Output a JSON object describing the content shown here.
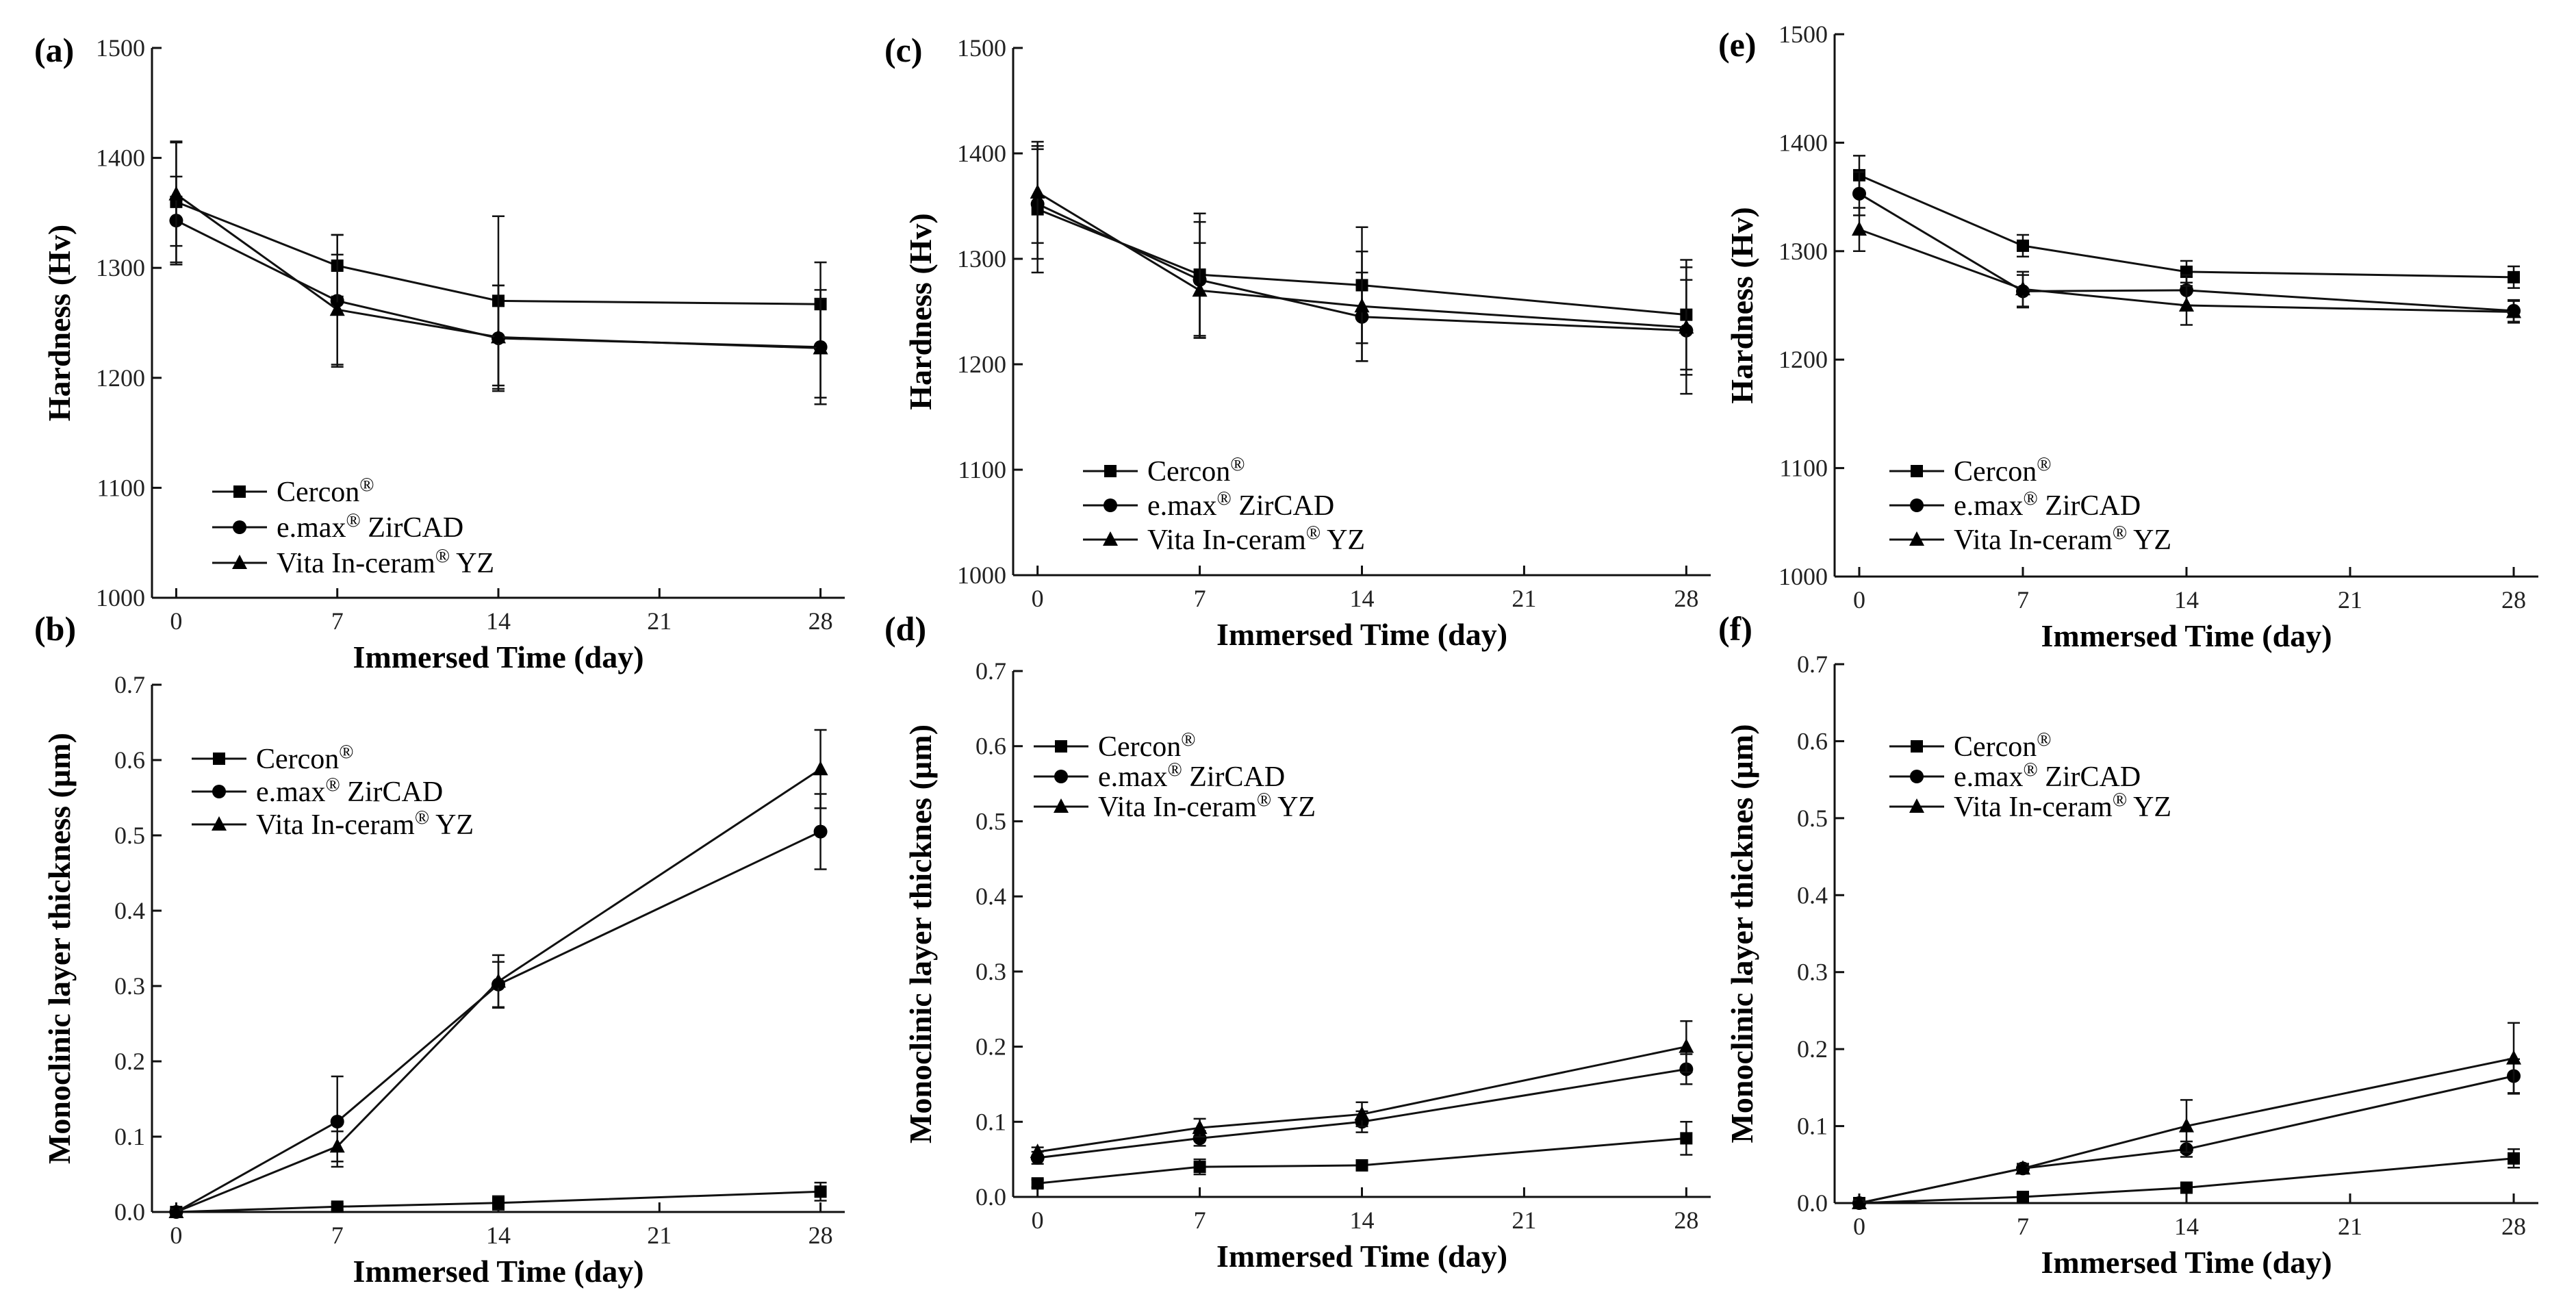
{
  "chart_data": [
    {
      "panel_label": "(a)",
      "type": "line",
      "xlabel": "Immersed Time (day)",
      "ylabel": "Hardness (Hv)",
      "xlim": [
        0,
        28
      ],
      "xticks": [
        0,
        7,
        14,
        21,
        28
      ],
      "ylim": [
        1000,
        1500
      ],
      "yticks": [
        1000,
        1100,
        1200,
        1300,
        1400,
        1500
      ],
      "ytick_labels": [
        "1000",
        "1100",
        "1200",
        "1300",
        "1400",
        "1500"
      ],
      "legend_position": "bottom-left",
      "x": [
        0,
        7,
        14,
        28
      ],
      "series": [
        {
          "name": "Cercon®",
          "name_base": "Cercon",
          "name_suffix": "",
          "marker": "square",
          "values": [
            1360,
            1302,
            1270,
            1267
          ],
          "errors": [
            55,
            28,
            77,
            38
          ]
        },
        {
          "name": "e.max® ZirCAD",
          "name_base": "e.max",
          "name_suffix": " ZirCAD",
          "marker": "circle",
          "values": [
            1343,
            1270,
            1236,
            1228
          ],
          "errors": [
            40,
            60,
            48,
            52
          ]
        },
        {
          "name": "Vita In-ceram® YZ",
          "name_base": "Vita In-ceram",
          "name_suffix": " YZ",
          "marker": "triangle",
          "values": [
            1367,
            1262,
            1237,
            1227
          ],
          "errors": [
            47,
            50,
            47,
            45
          ]
        }
      ]
    },
    {
      "panel_label": "(b)",
      "type": "line",
      "xlabel": "Immersed Time (day)",
      "ylabel": "Monoclinic layer thickness (µm)",
      "xlim": [
        0,
        28
      ],
      "xticks": [
        0,
        7,
        14,
        21,
        28
      ],
      "ylim": [
        0,
        0.7
      ],
      "yticks": [
        0,
        0.1,
        0.2,
        0.3,
        0.4,
        0.5,
        0.6,
        0.7
      ],
      "ytick_labels": [
        "0.0",
        "0.1",
        "0.2",
        "0.3",
        "0.4",
        "0.5",
        "0.6",
        "0.7"
      ],
      "legend_position": "top-left",
      "x": [
        0,
        7,
        14,
        28
      ],
      "series": [
        {
          "name": "Cercon®",
          "name_base": "Cercon",
          "name_suffix": "",
          "marker": "square",
          "values": [
            0.0,
            0.007,
            0.012,
            0.027
          ],
          "errors": [
            0.005,
            0.004,
            0.009,
            0.012
          ]
        },
        {
          "name": "e.max® ZirCAD",
          "name_base": "e.max",
          "name_suffix": " ZirCAD",
          "marker": "circle",
          "values": [
            0.0,
            0.12,
            0.302,
            0.505
          ],
          "errors": [
            0.004,
            0.06,
            0.03,
            0.05
          ]
        },
        {
          "name": "Vita In-ceram® YZ",
          "name_base": "Vita In-ceram",
          "name_suffix": " YZ",
          "marker": "triangle",
          "values": [
            0.0,
            0.087,
            0.306,
            0.588
          ],
          "errors": [
            0.004,
            0.02,
            0.035,
            0.052
          ]
        }
      ]
    },
    {
      "panel_label": "(c)",
      "type": "line",
      "xlabel": "Immersed Time (day)",
      "ylabel": "Hardness (Hv)",
      "xlim": [
        0,
        28
      ],
      "xticks": [
        0,
        7,
        14,
        21,
        28
      ],
      "ylim": [
        1000,
        1500
      ],
      "yticks": [
        1000,
        1100,
        1200,
        1300,
        1400,
        1500
      ],
      "ytick_labels": [
        "1000",
        "1100",
        "1200",
        "1300",
        "1400",
        "1500"
      ],
      "legend_position": "bottom-left",
      "x": [
        0,
        7,
        14,
        28
      ],
      "series": [
        {
          "name": "Cercon®",
          "name_base": "Cercon",
          "name_suffix": "",
          "marker": "square",
          "values": [
            1347,
            1285,
            1275,
            1247
          ],
          "errors": [
            60,
            58,
            55,
            52
          ]
        },
        {
          "name": "e.max® ZirCAD",
          "name_base": "e.max",
          "name_suffix": " ZirCAD",
          "marker": "circle",
          "values": [
            1352,
            1280,
            1245,
            1232
          ],
          "errors": [
            52,
            55,
            42,
            60
          ]
        },
        {
          "name": "Vita In-ceram® YZ",
          "name_base": "Vita In-ceram",
          "name_suffix": " YZ",
          "marker": "triangle",
          "values": [
            1363,
            1270,
            1255,
            1235
          ],
          "errors": [
            48,
            45,
            52,
            45
          ]
        }
      ]
    },
    {
      "panel_label": "(d)",
      "type": "line",
      "xlabel": "Immersed Time (day)",
      "ylabel": "Monoclinic layer thicknes (µm)",
      "xlim": [
        0,
        28
      ],
      "xticks": [
        0,
        7,
        14,
        21,
        28
      ],
      "ylim": [
        0,
        0.7
      ],
      "yticks": [
        0,
        0.1,
        0.2,
        0.3,
        0.4,
        0.5,
        0.6,
        0.7
      ],
      "ytick_labels": [
        "0.0",
        "0.1",
        "0.2",
        "0.3",
        "0.4",
        "0.5",
        "0.6",
        "0.7"
      ],
      "legend_position": "top-left",
      "x": [
        0,
        7,
        14,
        28
      ],
      "series": [
        {
          "name": "Cercon®",
          "name_base": "Cercon",
          "name_suffix": "",
          "marker": "square",
          "values": [
            0.018,
            0.04,
            0.042,
            0.078
          ],
          "errors": [
            0.005,
            0.01,
            0.006,
            0.022
          ]
        },
        {
          "name": "e.max® ZirCAD",
          "name_base": "e.max",
          "name_suffix": " ZirCAD",
          "marker": "circle",
          "values": [
            0.052,
            0.078,
            0.1,
            0.17
          ],
          "errors": [
            0.008,
            0.01,
            0.014,
            0.02
          ]
        },
        {
          "name": "Vita In-ceram® YZ",
          "name_base": "Vita In-ceram",
          "name_suffix": " YZ",
          "marker": "triangle",
          "values": [
            0.06,
            0.092,
            0.11,
            0.2
          ],
          "errors": [
            0.006,
            0.012,
            0.016,
            0.034
          ]
        }
      ]
    },
    {
      "panel_label": "(e)",
      "type": "line",
      "xlabel": "Immersed Time (day)",
      "ylabel": "Hardness (Hv)",
      "xlim": [
        0,
        28
      ],
      "xticks": [
        0,
        7,
        14,
        21,
        28
      ],
      "ylim": [
        1000,
        1500
      ],
      "yticks": [
        1000,
        1100,
        1200,
        1300,
        1400,
        1500
      ],
      "ytick_labels": [
        "1000",
        "1100",
        "1200",
        "1300",
        "1400",
        "1500"
      ],
      "legend_position": "bottom-left",
      "x": [
        0,
        7,
        14,
        28
      ],
      "series": [
        {
          "name": "Cercon®",
          "name_base": "Cercon",
          "name_suffix": "",
          "marker": "square",
          "values": [
            1370,
            1305,
            1281,
            1276
          ],
          "errors": [
            18,
            10,
            10,
            10
          ]
        },
        {
          "name": "e.max® ZirCAD",
          "name_base": "e.max",
          "name_suffix": " ZirCAD",
          "marker": "circle",
          "values": [
            1353,
            1263,
            1264,
            1245
          ],
          "errors": [
            20,
            15,
            14,
            10
          ]
        },
        {
          "name": "Vita In-ceram® YZ",
          "name_base": "Vita In-ceram",
          "name_suffix": " YZ",
          "marker": "triangle",
          "values": [
            1320,
            1265,
            1250,
            1244
          ],
          "errors": [
            20,
            16,
            18,
            10
          ]
        }
      ]
    },
    {
      "panel_label": "(f)",
      "type": "line",
      "xlabel": "Immersed Time (day)",
      "ylabel": "Monoclinic layer thicknes (µm)",
      "xlim": [
        0,
        28
      ],
      "xticks": [
        0,
        7,
        14,
        21,
        28
      ],
      "ylim": [
        0,
        0.7
      ],
      "yticks": [
        0,
        0.1,
        0.2,
        0.3,
        0.4,
        0.5,
        0.6,
        0.7
      ],
      "ytick_labels": [
        "0.0",
        "0.1",
        "0.2",
        "0.3",
        "0.4",
        "0.5",
        "0.6",
        "0.7"
      ],
      "legend_position": "top-left",
      "x": [
        0,
        7,
        14,
        28
      ],
      "series": [
        {
          "name": "Cercon®",
          "name_base": "Cercon",
          "name_suffix": "",
          "marker": "square",
          "values": [
            0.0,
            0.008,
            0.02,
            0.058
          ],
          "errors": [
            0.004,
            0.004,
            0.004,
            0.012
          ]
        },
        {
          "name": "e.max® ZirCAD",
          "name_base": "e.max",
          "name_suffix": " ZirCAD",
          "marker": "circle",
          "values": [
            0.0,
            0.045,
            0.07,
            0.165
          ],
          "errors": [
            0.004,
            0.006,
            0.01,
            0.022
          ]
        },
        {
          "name": "Vita In-ceram® YZ",
          "name_base": "Vita In-ceram",
          "name_suffix": " YZ",
          "marker": "triangle",
          "values": [
            0.0,
            0.045,
            0.1,
            0.188
          ],
          "errors": [
            0.004,
            0.006,
            0.034,
            0.046
          ]
        }
      ]
    }
  ]
}
